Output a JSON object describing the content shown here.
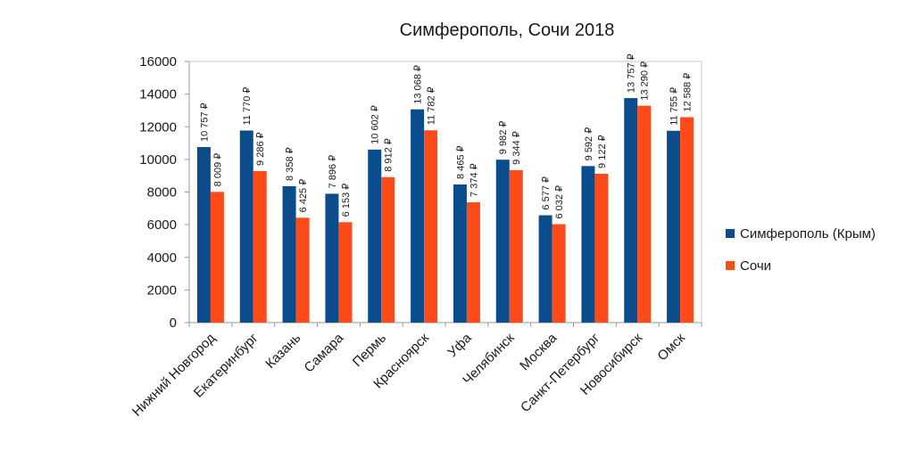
{
  "chart_data": {
    "type": "bar",
    "title": "Симферополь, Сочи 2018",
    "categories": [
      "Нижний Новгород",
      "Екатеринбург",
      "Казань",
      "Самара",
      "Пермь",
      "Красноярск",
      "Уфа",
      "Челябинск",
      "Москва",
      "Санкт-Петербург",
      "Новосибирск",
      "Омск"
    ],
    "series": [
      {
        "name": "Симферополь (Крым)",
        "color": "#0b4c8c",
        "values": [
          10757,
          11770,
          8358,
          7896,
          10602,
          13068,
          8465,
          9982,
          6577,
          9592,
          13757,
          11755
        ],
        "labels": [
          "10 757 ₽",
          "11 770 ₽",
          "8 358 ₽",
          "7 896 ₽",
          "10 602 ₽",
          "13 068 ₽",
          "8 465 ₽",
          "9 982 ₽",
          "6 577 ₽",
          "9 592 ₽",
          "13 757 ₽",
          "11 755 ₽"
        ]
      },
      {
        "name": "Сочи",
        "color": "#ff4a1a",
        "values": [
          8009,
          9286,
          6425,
          6153,
          8912,
          11782,
          7374,
          9344,
          6032,
          9122,
          13290,
          12588
        ],
        "labels": [
          "8 009 ₽",
          "9 286 ₽",
          "6 425 ₽",
          "6 153 ₽",
          "8 912 ₽",
          "11 782 ₽",
          "7 374 ₽",
          "9 344 ₽",
          "6 032 ₽",
          "9 122 ₽",
          "13 290 ₽",
          "12 588 ₽"
        ]
      }
    ],
    "xlabel": "",
    "ylabel": "",
    "ylim": [
      0,
      16000
    ],
    "yticks": [
      "0",
      "2000",
      "4000",
      "6000",
      "8000",
      "10000",
      "12000",
      "14000",
      "16000"
    ],
    "grid": false,
    "legend": "right"
  }
}
